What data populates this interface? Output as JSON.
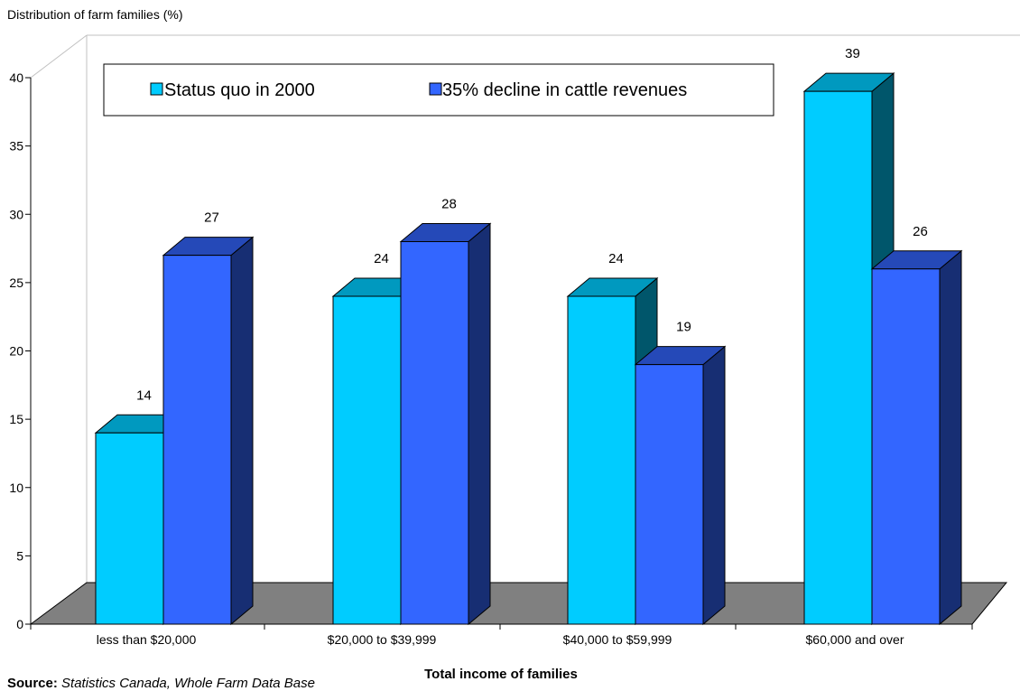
{
  "chart_data": {
    "type": "bar",
    "ylabel": "Distribution of farm families (%)",
    "xlabel": "Total income of families",
    "categories": [
      "less than $20,000",
      "$20,000 to $39,999",
      "$40,000 to $59,999",
      "$60,000 and over"
    ],
    "series": [
      {
        "name": "Status quo in 2000",
        "values": [
          14,
          24,
          24,
          39
        ],
        "labels": [
          "14",
          "24",
          "24",
          "39"
        ],
        "color": "#00CCFF"
      },
      {
        "name": "35% decline in cattle revenues",
        "values": [
          27,
          28,
          19,
          26
        ],
        "labels": [
          "27",
          "28",
          "19",
          "26"
        ],
        "color": "#3366FF"
      }
    ],
    "ylim": [
      0,
      40
    ],
    "yticks": [
      0,
      5,
      10,
      15,
      20,
      25,
      30,
      35,
      40
    ],
    "grid": false,
    "legend": "top",
    "floor_color": "#808080"
  },
  "source": {
    "label": "Source:",
    "text": "Statistics Canada, Whole Farm Data Base"
  }
}
